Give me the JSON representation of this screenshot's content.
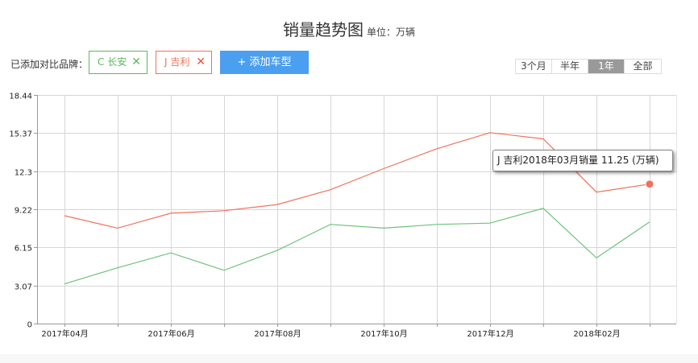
{
  "header": {
    "title": "销量趋势图",
    "unit": "单位：万辆"
  },
  "brands": {
    "label": "已添加对比品牌：",
    "items": [
      {
        "name": "C 长安",
        "color": "#5cb85c",
        "remove": "✕"
      },
      {
        "name": "J 吉利",
        "color": "#f0725a",
        "remove": "✕"
      }
    ],
    "add_button": "+ 添加车型"
  },
  "ranges": {
    "items": [
      "3个月",
      "半年",
      "1年",
      "全部"
    ],
    "active": "1年"
  },
  "tooltip": {
    "text": "J 吉利2018年03月销量 11.25 (万辆)"
  },
  "chart_data": {
    "type": "line",
    "x": [
      "2017年04月",
      "2017年05月",
      "2017年06月",
      "2017年07月",
      "2017年08月",
      "2017年09月",
      "2017年10月",
      "2017年11月",
      "2017年12月",
      "2018年01月",
      "2018年02月",
      "2018年03月"
    ],
    "x_tick_labels": [
      "2017年04月",
      "",
      "2017年06月",
      "",
      "2017年08月",
      "",
      "2017年10月",
      "",
      "2017年12月",
      "",
      "2018年02月",
      ""
    ],
    "y_ticks": [
      "0",
      "3.07",
      "6.15",
      "9.22",
      "12.3",
      "15.37",
      "18.44"
    ],
    "ylim": [
      0,
      18.44
    ],
    "grid": true,
    "series": [
      {
        "name": "J 吉利",
        "color": "#f0725a",
        "values": [
          8.7,
          7.7,
          8.9,
          9.1,
          9.6,
          10.8,
          12.5,
          14.1,
          15.4,
          14.9,
          10.6,
          11.25
        ]
      },
      {
        "name": "C 长安",
        "color": "#6cc27a",
        "values": [
          3.2,
          4.5,
          5.7,
          4.3,
          5.9,
          8.0,
          7.7,
          8.0,
          8.1,
          9.3,
          5.3,
          8.2
        ]
      }
    ],
    "highlight": {
      "series": "J 吉利",
      "index": 11
    }
  }
}
